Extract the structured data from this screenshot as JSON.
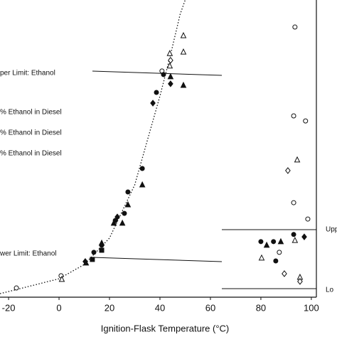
{
  "chart_data": {
    "type": "scatter",
    "x_label": "Ignition-Flask Temperature (°C)",
    "xlim": [
      -23.4,
      102
    ],
    "xticks": [
      -20,
      0,
      20,
      40,
      60,
      80,
      100
    ],
    "ylim": [
      0,
      100
    ],
    "annotations": [
      "per Limit: Ethanol",
      "% Ethanol in Diesel",
      "% Ethanol in Diesel",
      "% Ethanol in Diesel",
      "wer Limit: Ethanol",
      "Upp",
      "Lo"
    ],
    "curve": {
      "color": "#111",
      "x": [
        -23.4,
        -20,
        0,
        10,
        20,
        30,
        40,
        44,
        48,
        50
      ],
      "values": [
        1.2,
        1.9,
        6.2,
        11,
        19.9,
        37.8,
        67.7,
        80.9,
        95.2,
        100
      ]
    },
    "series": [
      {
        "marker": "circle-open",
        "color": "#111",
        "x": [
          93.5,
          93,
          97.7,
          98.6,
          93,
          87.3,
          0.8,
          -16.9,
          40.8
        ],
        "values": [
          90.9,
          61,
          59.3,
          26.3,
          31.8,
          15.1,
          7.2,
          3.1,
          76.1
        ]
      },
      {
        "marker": "triangle-open",
        "color": "#111",
        "x": [
          49.3,
          49.3,
          43.9,
          43.9,
          94.4,
          93.5,
          80.3,
          95.5,
          1.1
        ],
        "values": [
          88,
          82.5,
          82,
          77.8,
          46.2,
          19.1,
          13.2,
          6.7,
          6
        ]
      },
      {
        "marker": "diamond-open",
        "color": "#111",
        "x": [
          44.2,
          90.7,
          89.3,
          95.5
        ],
        "values": [
          79.7,
          42.6,
          7.9,
          5.3
        ]
      },
      {
        "marker": "circle",
        "color": "#111",
        "x": [
          41.4,
          38.6,
          33,
          27.3,
          25.9,
          22.3,
          16.9,
          13.8,
          80,
          85,
          93,
          85.9
        ],
        "values": [
          74.9,
          68.9,
          43.3,
          35.4,
          28.2,
          25.8,
          17.5,
          15.1,
          18.7,
          18.7,
          21.1,
          12.2
        ]
      },
      {
        "marker": "triangle",
        "color": "#111",
        "x": [
          49.3,
          44.2,
          33,
          27.3,
          25.1,
          21.7,
          16.9,
          82.3,
          87.9,
          10.7
        ],
        "values": [
          71.3,
          74.2,
          37.8,
          31.1,
          24.9,
          24.9,
          18.2,
          17.5,
          18.7,
          11.5
        ]
      },
      {
        "marker": "diamond",
        "color": "#111",
        "x": [
          44.2,
          37.2,
          23.1,
          97.2,
          10.4
        ],
        "values": [
          71.8,
          65.3,
          27,
          20.3,
          12
        ]
      },
      {
        "marker": "square",
        "color": "#111",
        "x": [
          16.9,
          13.2
        ],
        "values": [
          15.8,
          12.7
        ]
      }
    ]
  }
}
